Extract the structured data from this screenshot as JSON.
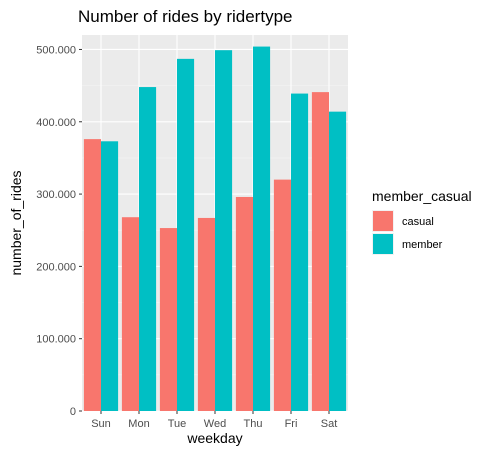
{
  "chart_data": {
    "type": "bar",
    "title": "Number of rides by ridertype",
    "xlabel": "weekday",
    "ylabel": "number_of_rides",
    "categories": [
      "Sun",
      "Mon",
      "Tue",
      "Wed",
      "Thu",
      "Fri",
      "Sat"
    ],
    "series": [
      {
        "name": "casual",
        "color": "#F8766D",
        "values": [
          376000,
          268000,
          253000,
          267000,
          296000,
          320000,
          441000
        ]
      },
      {
        "name": "member",
        "color": "#00BFC4",
        "values": [
          373000,
          448000,
          487000,
          499000,
          504000,
          439000,
          414000
        ]
      }
    ],
    "ylim": [
      0,
      520000
    ],
    "yticks": [
      0,
      100000,
      200000,
      300000,
      400000,
      500000
    ],
    "ytick_labels": [
      "0",
      "100.000",
      "200.000",
      "300.000",
      "400.000",
      "500.000"
    ],
    "grid": true,
    "legend": {
      "title": "member_casual",
      "position": "right"
    },
    "panel_background": "#EBEBEB"
  }
}
